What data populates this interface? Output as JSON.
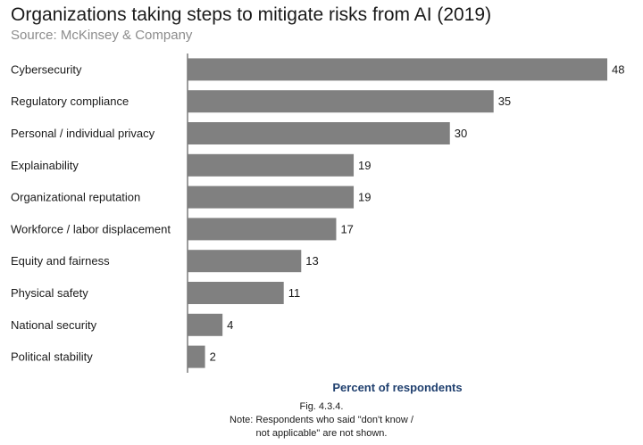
{
  "title": "Organizations taking steps to mitigate risks from AI (2019)",
  "subtitle": "Source: McKinsey & Company",
  "caption": {
    "fig": "Fig. 4.3.4.",
    "note_line1": "Note: Respondents who said \"don't know /",
    "note_line2": "not applicable\" are not shown."
  },
  "colors": {
    "bar": "#808080",
    "axis": "#7a7a7a",
    "xlabel": "#1f3f6e"
  },
  "chart_data": {
    "type": "bar",
    "orientation": "horizontal",
    "title": "Organizations taking steps to mitigate risks from AI (2019)",
    "subtitle": "Source: McKinsey & Company",
    "xlabel": "Percent of respondents",
    "ylabel": "",
    "categories": [
      "Cybersecurity",
      "Regulatory compliance",
      "Personal / individual privacy",
      "Explainability",
      "Organizational reputation",
      "Workforce / labor displacement",
      "Equity and fairness",
      "Physical safety",
      "National security",
      "Political stability"
    ],
    "values": [
      48,
      35,
      30,
      19,
      19,
      17,
      13,
      11,
      4,
      2
    ],
    "xlim": [
      0,
      48
    ],
    "grid": false,
    "legend": "none",
    "data_labels": true
  }
}
